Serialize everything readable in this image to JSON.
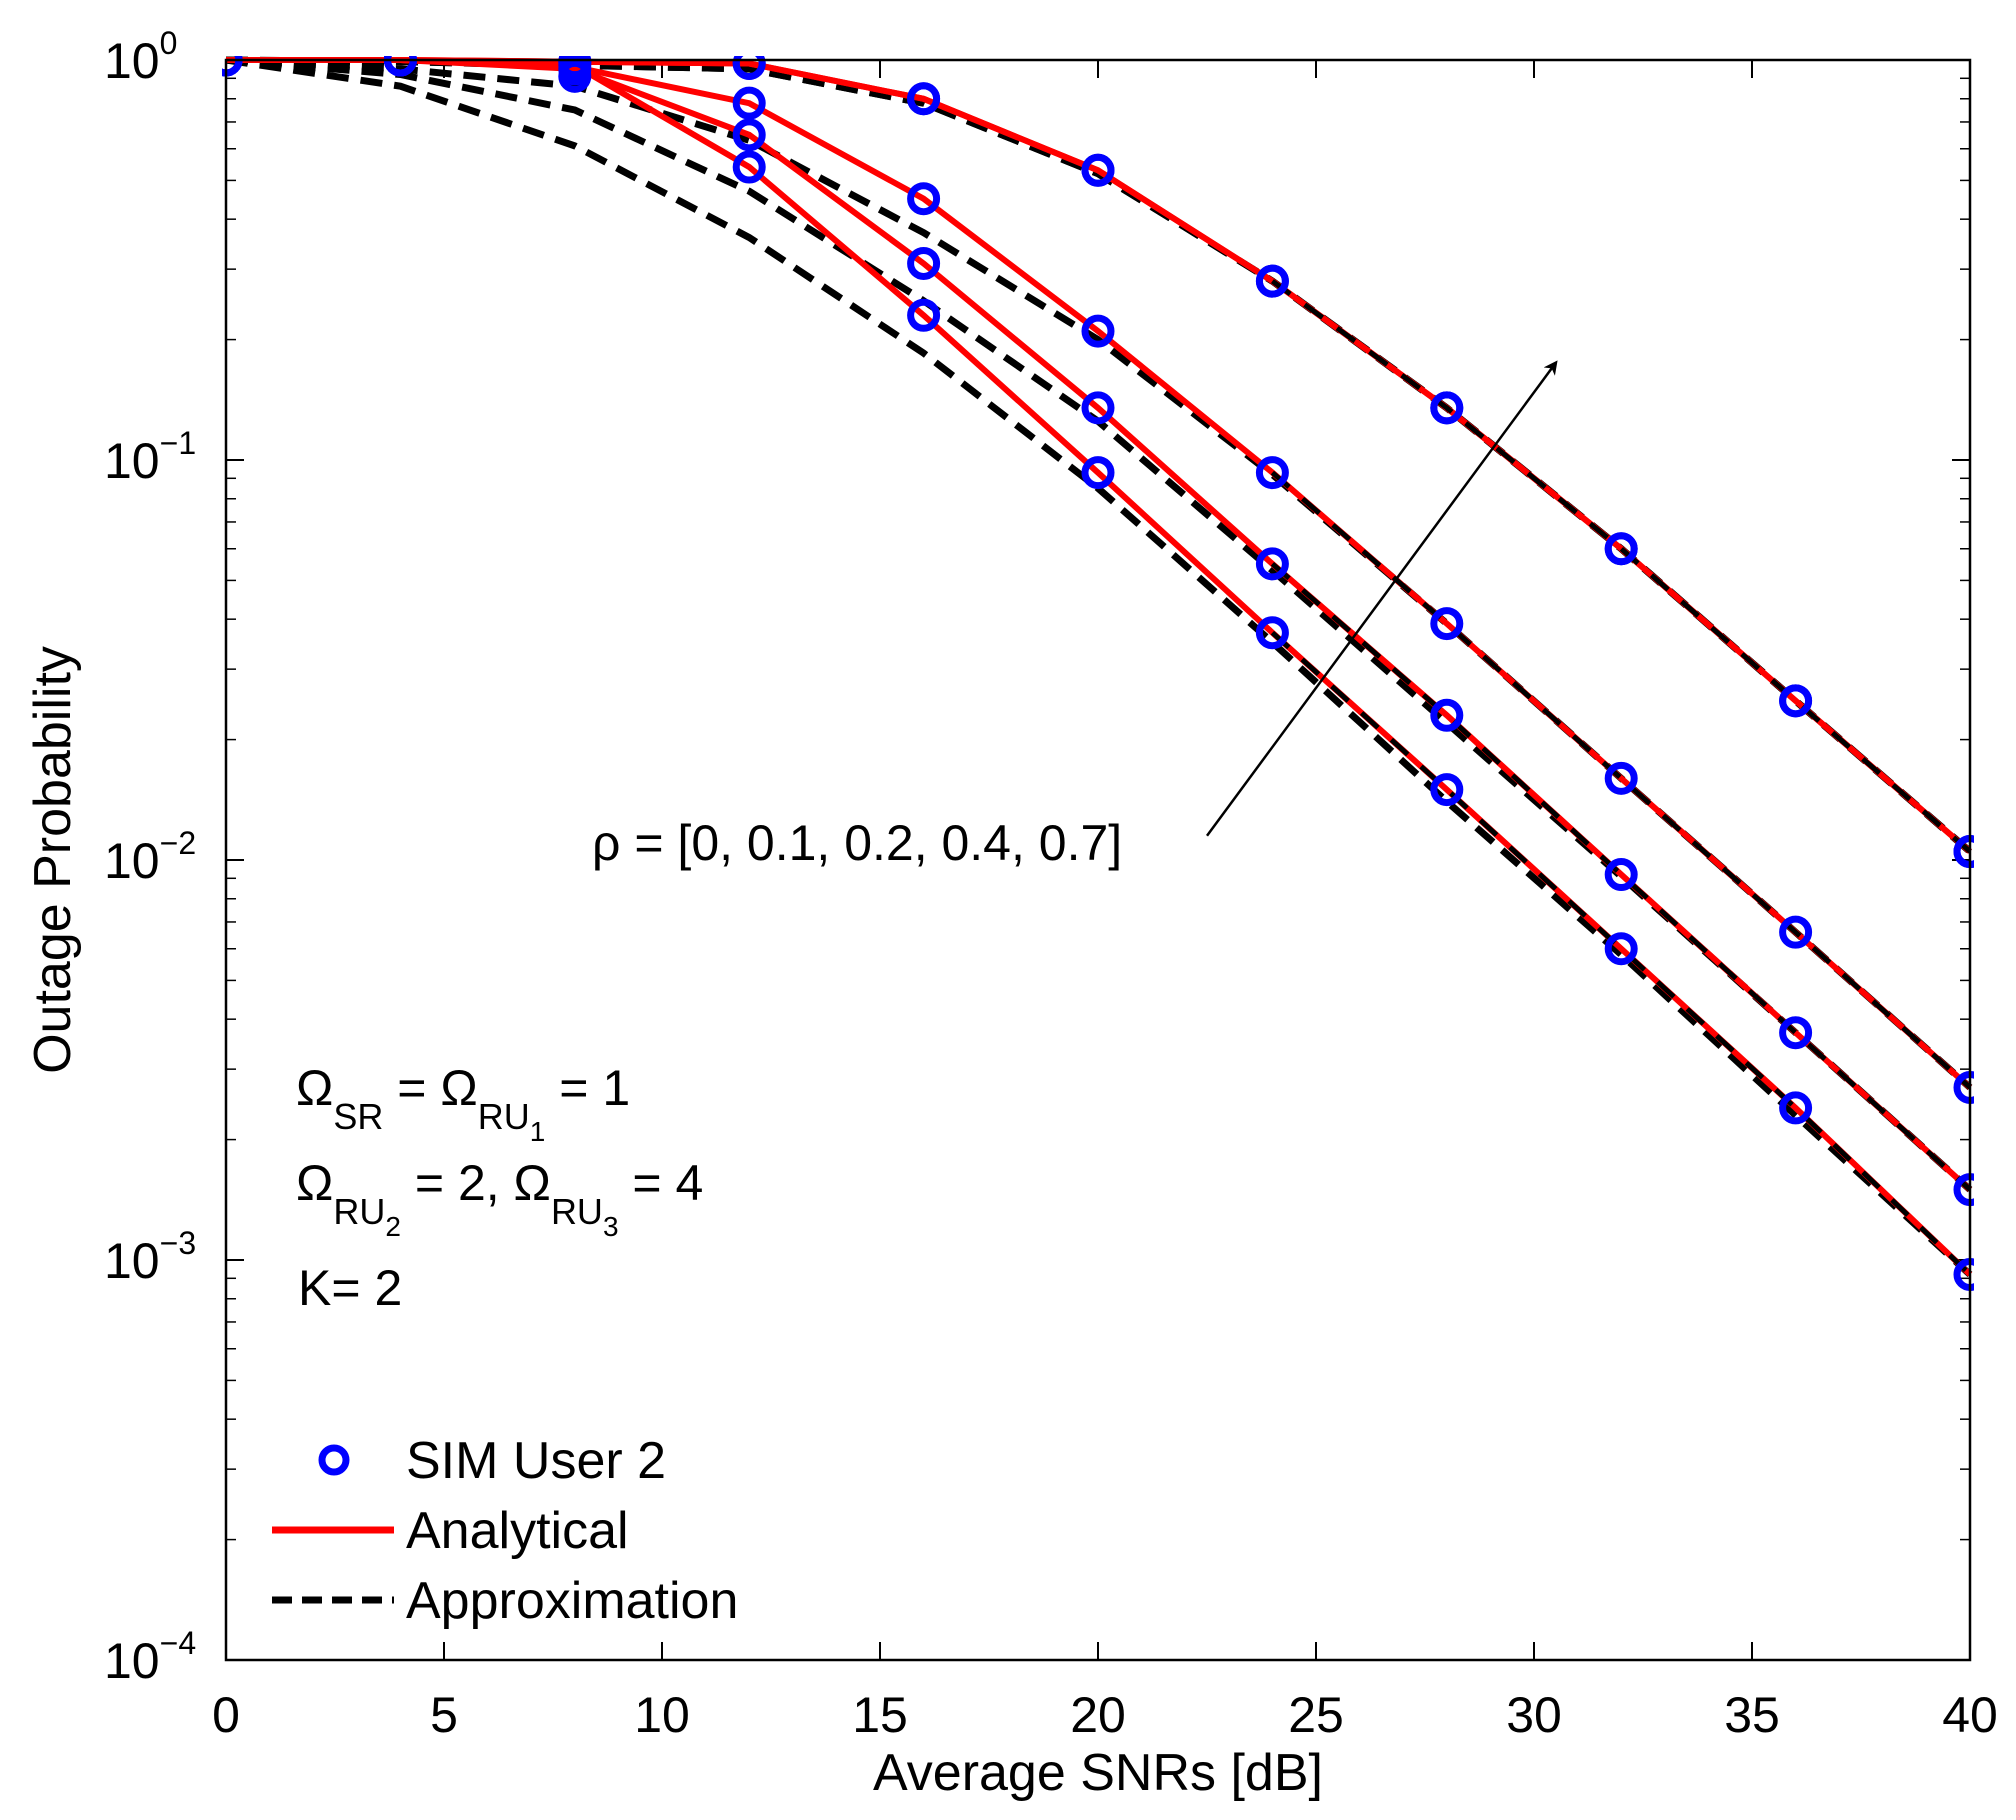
{
  "chart_data": {
    "type": "line",
    "xlabel": "Average SNRs [dB]",
    "ylabel": "Outage Probability",
    "xscale": "linear",
    "yscale": "log",
    "xlim": [
      0,
      40
    ],
    "ylim": [
      0.0001,
      1
    ],
    "xticks": [
      0,
      5,
      10,
      15,
      20,
      25,
      30,
      35,
      40
    ],
    "xtick_labels": [
      "0",
      "5",
      "10",
      "15",
      "20",
      "25",
      "30",
      "35",
      "40"
    ],
    "yticks": [
      1,
      0.1,
      0.01,
      0.001,
      0.0001
    ],
    "ytick_labels": [
      {
        "base": "10",
        "exp": "0"
      },
      {
        "base": "10",
        "exp": "−1"
      },
      {
        "base": "10",
        "exp": "−2"
      },
      {
        "base": "10",
        "exp": "−3"
      },
      {
        "base": "10",
        "exp": "−4"
      }
    ],
    "x": [
      0,
      4,
      8,
      12,
      16,
      20,
      24,
      28,
      32,
      36,
      40
    ],
    "series": [
      {
        "rho": "0",
        "sim": [
          1,
          1,
          0.97,
          0.54,
          0.23,
          0.093,
          0.037,
          0.015,
          0.006,
          0.0024,
          0.00092
        ],
        "analytical": [
          1,
          1,
          0.97,
          0.54,
          0.23,
          0.093,
          0.037,
          0.015,
          0.006,
          0.0024,
          0.00092
        ],
        "approximation": [
          1,
          0.86,
          0.61,
          0.36,
          0.185,
          0.085,
          0.035,
          0.014,
          0.0058,
          0.0023,
          0.00092
        ]
      },
      {
        "rho": "0.1",
        "sim": [
          1,
          1,
          0.95,
          0.65,
          0.31,
          0.135,
          0.055,
          0.023,
          0.0092,
          0.0037,
          0.0015
        ],
        "analytical": [
          1,
          1,
          0.95,
          0.65,
          0.31,
          0.135,
          0.055,
          0.023,
          0.0092,
          0.0037,
          0.0015
        ],
        "approximation": [
          1,
          0.92,
          0.75,
          0.47,
          0.25,
          0.125,
          0.053,
          0.022,
          0.0091,
          0.0037,
          0.0015
        ]
      },
      {
        "rho": "0.2",
        "sim": [
          1,
          1,
          0.91,
          0.78,
          0.45,
          0.21,
          0.093,
          0.039,
          0.016,
          0.0066,
          0.0027
        ],
        "analytical": [
          1,
          1,
          0.96,
          0.78,
          0.45,
          0.21,
          0.093,
          0.039,
          0.016,
          0.0066,
          0.0027
        ],
        "approximation": [
          1,
          0.95,
          0.86,
          0.63,
          0.37,
          0.2,
          0.092,
          0.039,
          0.016,
          0.0066,
          0.0027
        ]
      },
      {
        "rho": "0.4",
        "sim": [
          1,
          1,
          0.99,
          0.98,
          0.8,
          0.53,
          0.28,
          0.135,
          0.06,
          0.025,
          0.0105
        ],
        "analytical": [
          1,
          1,
          0.99,
          0.98,
          0.8,
          0.53,
          0.28,
          0.135,
          0.06,
          0.025,
          0.0105
        ],
        "approximation": [
          1,
          0.99,
          0.97,
          0.95,
          0.78,
          0.52,
          0.28,
          0.135,
          0.06,
          0.025,
          0.0105
        ]
      },
      {
        "rho": "0.7",
        "sim": [
          1,
          1,
          0.99,
          0.98,
          0.8,
          0.53,
          0.28,
          0.135,
          0.06,
          0.025,
          0.0105
        ],
        "analytical": [
          1,
          1,
          0.99,
          0.98,
          0.8,
          0.53,
          0.28,
          0.135,
          0.06,
          0.025,
          0.0105
        ],
        "approximation": [
          1,
          0.99,
          0.97,
          0.95,
          0.78,
          0.52,
          0.28,
          0.135,
          0.06,
          0.025,
          0.0105
        ]
      }
    ],
    "annotation": {
      "text": "ρ = [0, 0.1, 0.2, 0.4, 0.7]",
      "arrow_from": [
        22.5,
        0.0115
      ],
      "arrow_to": [
        30.5,
        0.175
      ]
    },
    "params": {
      "omega": "Ω",
      "sub_sr": "SR",
      "sub_ru": "RU",
      "idx1": "1",
      "idx2": "2",
      "idx3": "3",
      "eq": " = ",
      "eq_one": " = 1",
      "two_comma": " = 2, ",
      "eq_four": " = 4",
      "k_line": "K= 2"
    },
    "legend": {
      "position": "bottom-left",
      "entries": [
        {
          "label": "SIM User 2",
          "style": "markers",
          "color": "#0000ff"
        },
        {
          "label": "Analytical",
          "style": "solid",
          "color": "#ff0000"
        },
        {
          "label": "Approximation",
          "style": "dashed",
          "color": "#000000"
        }
      ]
    },
    "colors": {
      "sim": "#0000ff",
      "analytical": "#ff0000",
      "approximation": "#000000",
      "axes": "#000000"
    }
  }
}
